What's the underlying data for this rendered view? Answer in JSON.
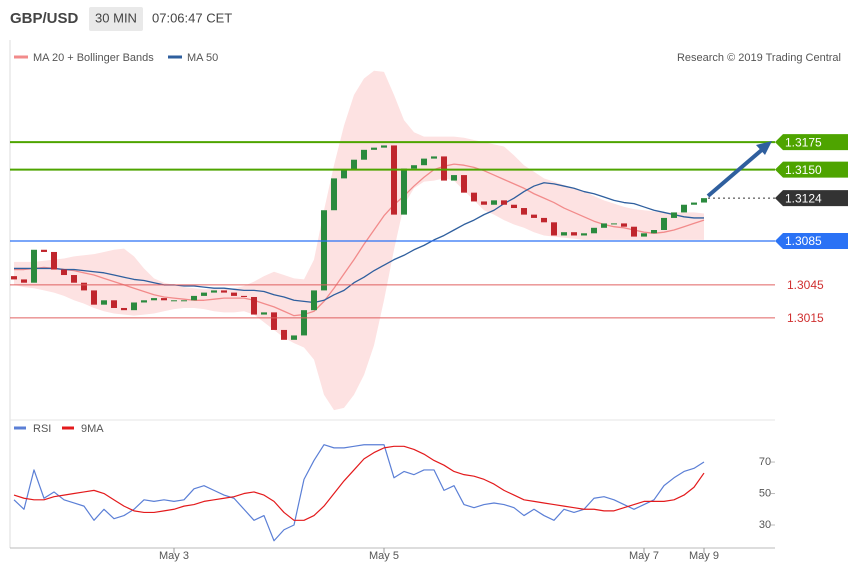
{
  "header": {
    "symbol": "GBP/USD",
    "interval": "30 MIN",
    "time": "07:06:47 CET"
  },
  "chart_data": [
    {
      "type": "candlestick",
      "credit": "Research © 2019 Trading Central",
      "up_color": "#2b8a3e",
      "down_color": "#c0262d",
      "open": [
        1.3053,
        1.305,
        1.3047,
        1.3077,
        1.3075,
        1.3059,
        1.3054,
        1.3047,
        1.304,
        1.3027,
        1.3031,
        1.3024,
        1.3022,
        1.3029,
        1.3031,
        1.3033,
        1.3031,
        1.3031,
        1.3031,
        1.3035,
        1.3038,
        1.304,
        1.3038,
        1.3035,
        1.3034,
        1.3018,
        1.302,
        1.3004,
        1.2995,
        1.2999,
        1.3022,
        1.304,
        1.3113,
        1.3142,
        1.315,
        1.3159,
        1.3168,
        1.317,
        1.3172,
        1.3109,
        1.3151,
        1.3154,
        1.316,
        1.3162,
        1.314,
        1.3145,
        1.3129,
        1.3121,
        1.3118,
        1.3122,
        1.3118,
        1.3115,
        1.3109,
        1.3106,
        1.3102,
        1.309,
        1.3093,
        1.309,
        1.3092,
        1.3097,
        1.3101,
        1.3101,
        1.3098,
        1.3089,
        1.3092,
        1.3095,
        1.3106,
        1.3111,
        1.3118,
        1.312
      ],
      "close": [
        1.305,
        1.3047,
        1.3077,
        1.3075,
        1.3059,
        1.3054,
        1.3047,
        1.304,
        1.3027,
        1.3031,
        1.3024,
        1.3022,
        1.3029,
        1.3031,
        1.3033,
        1.3031,
        1.3031,
        1.3031,
        1.3035,
        1.3038,
        1.304,
        1.3038,
        1.3035,
        1.3034,
        1.3018,
        1.302,
        1.3004,
        1.2995,
        1.2999,
        1.3022,
        1.304,
        1.3113,
        1.3142,
        1.315,
        1.3159,
        1.3168,
        1.317,
        1.3172,
        1.3109,
        1.3151,
        1.3154,
        1.316,
        1.3162,
        1.314,
        1.3145,
        1.3129,
        1.3121,
        1.3118,
        1.3122,
        1.3118,
        1.3115,
        1.3109,
        1.3106,
        1.3102,
        1.309,
        1.3093,
        1.309,
        1.3092,
        1.3097,
        1.3101,
        1.3101,
        1.3098,
        1.3089,
        1.3092,
        1.3095,
        1.3106,
        1.3111,
        1.3118,
        1.312,
        1.3124
      ],
      "series": [
        {
          "name": "MA 20 + Bollinger Bands",
          "color": "#f28b8b",
          "band_color": "#fde2e2",
          "values": [
            1.3059,
            1.3059,
            1.306,
            1.3061,
            1.306,
            1.3059,
            1.3058,
            1.3056,
            1.3054,
            1.3051,
            1.3048,
            1.3045,
            1.3042,
            1.3039,
            1.3036,
            1.3034,
            1.3033,
            1.3032,
            1.3031,
            1.3031,
            1.3032,
            1.3033,
            1.3033,
            1.3033,
            1.3031,
            1.3028,
            1.3025,
            1.3021,
            1.3017,
            1.3018,
            1.3021,
            1.303,
            1.3042,
            1.3055,
            1.3068,
            1.3082,
            1.3095,
            1.3108,
            1.3118,
            1.3126,
            1.3135,
            1.3143,
            1.315,
            1.3153,
            1.3155,
            1.3154,
            1.3152,
            1.3149,
            1.3145,
            1.3141,
            1.3137,
            1.3133,
            1.3128,
            1.3124,
            1.312,
            1.3115,
            1.3111,
            1.3107,
            1.3103,
            1.31,
            1.3098,
            1.3097,
            1.3095,
            1.3093,
            1.3092,
            1.3093,
            1.3095,
            1.3098,
            1.3101,
            1.3104
          ],
          "upper": [
            1.3066,
            1.3066,
            1.3066,
            1.3067,
            1.3068,
            1.3069,
            1.3071,
            1.3072,
            1.3073,
            1.3075,
            1.3077,
            1.3078,
            1.3071,
            1.306,
            1.3051,
            1.3047,
            1.3045,
            1.3043,
            1.3042,
            1.3041,
            1.3041,
            1.3041,
            1.3042,
            1.3044,
            1.3048,
            1.3053,
            1.3057,
            1.3054,
            1.3051,
            1.305,
            1.3068,
            1.3113,
            1.3154,
            1.319,
            1.3218,
            1.3233,
            1.324,
            1.3239,
            1.3218,
            1.3195,
            1.3184,
            1.318,
            1.318,
            1.318,
            1.318,
            1.3179,
            1.3177,
            1.3175,
            1.3173,
            1.3171,
            1.3163,
            1.3154,
            1.3148,
            1.3142,
            1.3139,
            1.3136,
            1.3133,
            1.313,
            1.3126,
            1.3122,
            1.3119,
            1.3116,
            1.3114,
            1.3113,
            1.3112,
            1.3111,
            1.3111,
            1.3111,
            1.3111,
            1.311
          ],
          "lower": [
            1.3045,
            1.3043,
            1.3042,
            1.304,
            1.3038,
            1.3035,
            1.3031,
            1.3028,
            1.3024,
            1.3021,
            1.3019,
            1.3018,
            1.3017,
            1.3018,
            1.3019,
            1.3021,
            1.3023,
            1.3024,
            1.3024,
            1.3023,
            1.3021,
            1.302,
            1.302,
            1.3021,
            1.3018,
            1.3011,
            1.3004,
            1.2997,
            1.2992,
            1.2988,
            1.2977,
            1.2945,
            1.2931,
            1.2933,
            1.2945,
            1.2963,
            1.299,
            1.3031,
            1.3077,
            1.3118,
            1.3133,
            1.3139,
            1.314,
            1.3142,
            1.314,
            1.3131,
            1.3122,
            1.3113,
            1.3109,
            1.3104,
            1.31,
            1.3097,
            1.3093,
            1.309,
            1.3089,
            1.3088,
            1.3087,
            1.3086,
            1.3086,
            1.3086,
            1.3086,
            1.3086,
            1.3086,
            1.3086,
            1.3086,
            1.3086,
            1.3086,
            1.3086,
            1.3086,
            1.3086
          ]
        },
        {
          "name": "MA 50",
          "color": "#2f5f9e",
          "values": [
            1.306,
            1.306,
            1.306,
            1.306,
            1.306,
            1.3059,
            1.3059,
            1.3058,
            1.3057,
            1.3056,
            1.3054,
            1.3052,
            1.305,
            1.3049,
            1.3047,
            1.3045,
            1.3045,
            1.3044,
            1.3044,
            1.3043,
            1.3042,
            1.3042,
            1.3041,
            1.304,
            1.304,
            1.3039,
            1.3036,
            1.3034,
            1.3031,
            1.303,
            1.3029,
            1.3031,
            1.3036,
            1.304,
            1.3047,
            1.3052,
            1.3058,
            1.3063,
            1.3068,
            1.3072,
            1.3077,
            1.3081,
            1.3086,
            1.309,
            1.3095,
            1.31,
            1.3104,
            1.3109,
            1.3113,
            1.3119,
            1.3124,
            1.313,
            1.3135,
            1.3138,
            1.3137,
            1.3135,
            1.3133,
            1.313,
            1.3128,
            1.3125,
            1.3122,
            1.312,
            1.3119,
            1.3116,
            1.3113,
            1.3111,
            1.3109,
            1.3107,
            1.3106,
            1.3106
          ]
        }
      ],
      "levels": [
        {
          "value": 1.3175,
          "color": "#4ea400",
          "line": "solid",
          "tag": "box"
        },
        {
          "value": 1.315,
          "label": "1.3150",
          "color": "#4ea400",
          "line": "solid",
          "tag": "box"
        },
        {
          "value": 1.3124,
          "color": "#333333",
          "line": "dotted",
          "tag": "box"
        },
        {
          "value": 1.3085,
          "color": "#2a72f5",
          "line": "solid",
          "tag": "box"
        },
        {
          "value": 1.3045,
          "color": "#e06060",
          "line": "solid",
          "tag": "text"
        },
        {
          "value": 1.3015,
          "color": "#e06060",
          "line": "solid",
          "tag": "text"
        }
      ],
      "ylim": [
        1.2922,
        1.3268
      ]
    },
    {
      "type": "line",
      "categories": [
        null,
        null,
        null,
        null,
        null,
        null,
        null,
        null,
        null,
        null,
        null,
        null,
        null,
        null,
        null,
        null,
        "May 3",
        null,
        null,
        null,
        null,
        null,
        null,
        null,
        null,
        null,
        null,
        null,
        null,
        null,
        null,
        null,
        null,
        null,
        null,
        null,
        null,
        "May 5",
        null,
        null,
        null,
        null,
        null,
        null,
        null,
        null,
        null,
        null,
        null,
        null,
        null,
        null,
        null,
        null,
        null,
        null,
        null,
        null,
        null,
        null,
        null,
        null,
        null,
        "May 7",
        null,
        null,
        null,
        null,
        null,
        "May 9"
      ],
      "series": [
        {
          "name": "RSI",
          "color": "#5b7fd6",
          "values": [
            46,
            40,
            65,
            47,
            51,
            46,
            44,
            42,
            33,
            40,
            34,
            36,
            40,
            46,
            45,
            46,
            45,
            46,
            53,
            55,
            52,
            49,
            47,
            40,
            33,
            36,
            20,
            27,
            30,
            59,
            71,
            81,
            79,
            79,
            80,
            81,
            81,
            81,
            60,
            64,
            62,
            65,
            65,
            52,
            55,
            43,
            41,
            43,
            44,
            43,
            41,
            36,
            40,
            36,
            33,
            40,
            38,
            40,
            47,
            48,
            46,
            43,
            40,
            43,
            46,
            55,
            60,
            64,
            66,
            70
          ]
        },
        {
          "name": "9MA",
          "color": "#e31a1c",
          "values": [
            49,
            47,
            46,
            46,
            48,
            49,
            50,
            51,
            52,
            50,
            46,
            42,
            39,
            38,
            38,
            39,
            40,
            42,
            43,
            45,
            46,
            47,
            48,
            50,
            51,
            49,
            45,
            38,
            33,
            33,
            36,
            42,
            50,
            58,
            65,
            72,
            76,
            79,
            80,
            80,
            78,
            75,
            71,
            68,
            64,
            62,
            61,
            59,
            56,
            52,
            49,
            46,
            45,
            44,
            43,
            42,
            41,
            40,
            40,
            39,
            39,
            41,
            43,
            45,
            45,
            45,
            46,
            49,
            54,
            63
          ]
        }
      ],
      "ylim": [
        15.4,
        84
      ],
      "yticks": [
        30,
        50,
        70
      ]
    }
  ]
}
